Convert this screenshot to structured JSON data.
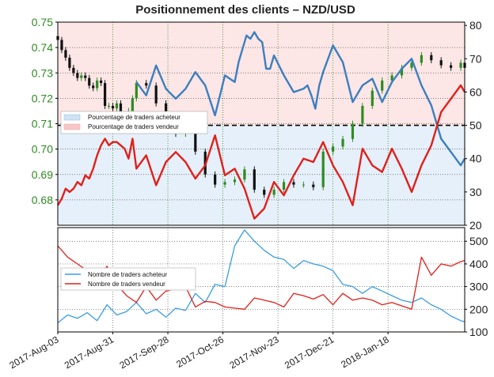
{
  "chart_data": [
    {
      "type": "line",
      "title": "Positionnement des clients – NZD/USD",
      "x_tick_labels": [
        "2017-Aug-03",
        "2017-Aug-31",
        "2017-Sep-28",
        "2017-Oct-26",
        "2017-Nov-23",
        "2017-Dec-21",
        "2018-Jan-18"
      ],
      "price_axis": {
        "ylim": [
          0.67,
          0.75
        ],
        "ticks": [
          "0.68",
          "0.69",
          "0.70",
          "0.71",
          "0.72",
          "0.73",
          "0.74",
          "0.75"
        ],
        "color": "#2e8b22"
      },
      "percent_axis": {
        "ylim": [
          20,
          81
        ],
        "ticks": [
          "20",
          "30",
          "40",
          "50",
          "60",
          "70",
          "80"
        ]
      },
      "reference_line": 50,
      "grid": true,
      "legend_position": "left",
      "series": [
        {
          "name": "Pourcentage de traders acheteur",
          "color": "#3a7fc0",
          "x": [
            40,
            45,
            50,
            55,
            60,
            65,
            70,
            75,
            80,
            85,
            90,
            92,
            94,
            96,
            98,
            100,
            102,
            104,
            106,
            108,
            110,
            115,
            120,
            125,
            127,
            129,
            131,
            133,
            135,
            140,
            145,
            150,
            155,
            160,
            165,
            170,
            175,
            180,
            185,
            190,
            195,
            200,
            205,
            207
          ],
          "values": [
            63,
            59,
            68,
            61,
            58,
            61,
            66,
            62,
            53,
            65,
            63,
            69,
            73,
            77,
            76,
            78,
            76,
            75,
            67,
            67,
            71,
            65,
            60,
            61,
            62,
            59,
            55,
            62,
            66,
            74,
            69,
            57,
            62,
            64,
            57,
            63,
            67,
            70,
            62,
            56,
            46,
            42,
            38,
            40
          ]
        },
        {
          "name": "Pourcentage de traders vendeur",
          "color": "#e0201b",
          "x": [
            0,
            2,
            4,
            6,
            8,
            10,
            12,
            14,
            16,
            18,
            20,
            22,
            24,
            26,
            28,
            30,
            32,
            34,
            36,
            38,
            40,
            45,
            50,
            55,
            60,
            65,
            70,
            75,
            80,
            85,
            90,
            95,
            100,
            105,
            110,
            115,
            120,
            125,
            130,
            135,
            140,
            145,
            150,
            155,
            160,
            165,
            170,
            175,
            180,
            185,
            190,
            195,
            200,
            205,
            207
          ],
          "values": [
            26,
            28,
            31,
            30,
            31,
            33,
            32,
            35,
            34,
            37,
            41,
            44,
            46,
            44,
            45,
            45,
            44,
            43,
            40,
            46,
            37,
            41,
            32,
            39,
            42,
            39,
            34,
            38,
            47,
            35,
            37,
            31,
            22,
            25,
            33,
            29,
            35,
            40,
            39,
            45,
            38,
            33,
            26,
            43,
            38,
            36,
            43,
            37,
            30,
            38,
            44,
            54,
            58,
            62,
            60
          ]
        },
        {
          "name": "NZD/USD",
          "type": "candlestick",
          "x": [
            0,
            2,
            4,
            6,
            8,
            10,
            12,
            14,
            16,
            18,
            20,
            22,
            24,
            26,
            28,
            30,
            32,
            34,
            36,
            38,
            40,
            45,
            50,
            55,
            60,
            65,
            70,
            75,
            80,
            85,
            90,
            95,
            100,
            105,
            110,
            115,
            120,
            125,
            130,
            135,
            140,
            145,
            150,
            155,
            160,
            165,
            170,
            175,
            180,
            185,
            190,
            195,
            200,
            205,
            207
          ],
          "values": [
            0.743,
            0.739,
            0.736,
            0.732,
            0.73,
            0.728,
            0.729,
            0.728,
            0.725,
            0.724,
            0.727,
            0.726,
            0.717,
            0.717,
            0.716,
            0.718,
            0.713,
            0.713,
            0.715,
            0.72,
            0.726,
            0.725,
            0.718,
            0.71,
            0.706,
            0.711,
            0.699,
            0.69,
            0.686,
            0.687,
            0.688,
            0.692,
            0.684,
            0.682,
            0.684,
            0.687,
            0.686,
            0.686,
            0.685,
            0.699,
            0.701,
            0.704,
            0.71,
            0.717,
            0.723,
            0.727,
            0.729,
            0.732,
            0.734,
            0.737,
            0.735,
            0.733,
            0.732,
            0.734,
            0.732
          ]
        }
      ]
    },
    {
      "type": "line",
      "ylim": [
        100,
        560
      ],
      "ticks": [
        "100",
        "200",
        "300",
        "400",
        "500"
      ],
      "legend_position": "left",
      "grid": true,
      "series": [
        {
          "name": "Nombre de traders acheteur",
          "color": "#3a9de0",
          "x": [
            0,
            5,
            10,
            15,
            20,
            25,
            30,
            35,
            40,
            45,
            50,
            55,
            60,
            65,
            70,
            75,
            80,
            85,
            90,
            95,
            100,
            105,
            110,
            115,
            120,
            125,
            130,
            135,
            140,
            145,
            150,
            155,
            160,
            165,
            170,
            175,
            180,
            185,
            190,
            195,
            200,
            205,
            207
          ],
          "values": [
            140,
            175,
            160,
            185,
            150,
            220,
            175,
            190,
            230,
            180,
            200,
            165,
            205,
            195,
            270,
            230,
            310,
            300,
            480,
            550,
            500,
            460,
            430,
            420,
            380,
            415,
            400,
            390,
            370,
            310,
            300,
            270,
            300,
            280,
            260,
            240,
            230,
            250,
            220,
            200,
            170,
            150,
            145
          ]
        },
        {
          "name": "Nombre de traders vendeur",
          "color": "#e0201b",
          "x": [
            0,
            5,
            10,
            15,
            20,
            25,
            30,
            35,
            40,
            45,
            50,
            55,
            60,
            65,
            70,
            75,
            80,
            85,
            90,
            95,
            100,
            105,
            110,
            115,
            120,
            125,
            130,
            135,
            140,
            145,
            150,
            155,
            160,
            165,
            170,
            175,
            180,
            185,
            190,
            195,
            200,
            205,
            207
          ],
          "values": [
            480,
            430,
            400,
            370,
            320,
            390,
            310,
            260,
            230,
            300,
            240,
            280,
            290,
            300,
            210,
            235,
            230,
            210,
            205,
            200,
            250,
            240,
            230,
            210,
            270,
            260,
            245,
            265,
            220,
            270,
            240,
            250,
            240,
            220,
            230,
            215,
            200,
            430,
            350,
            400,
            390,
            410,
            415
          ]
        }
      ]
    }
  ]
}
